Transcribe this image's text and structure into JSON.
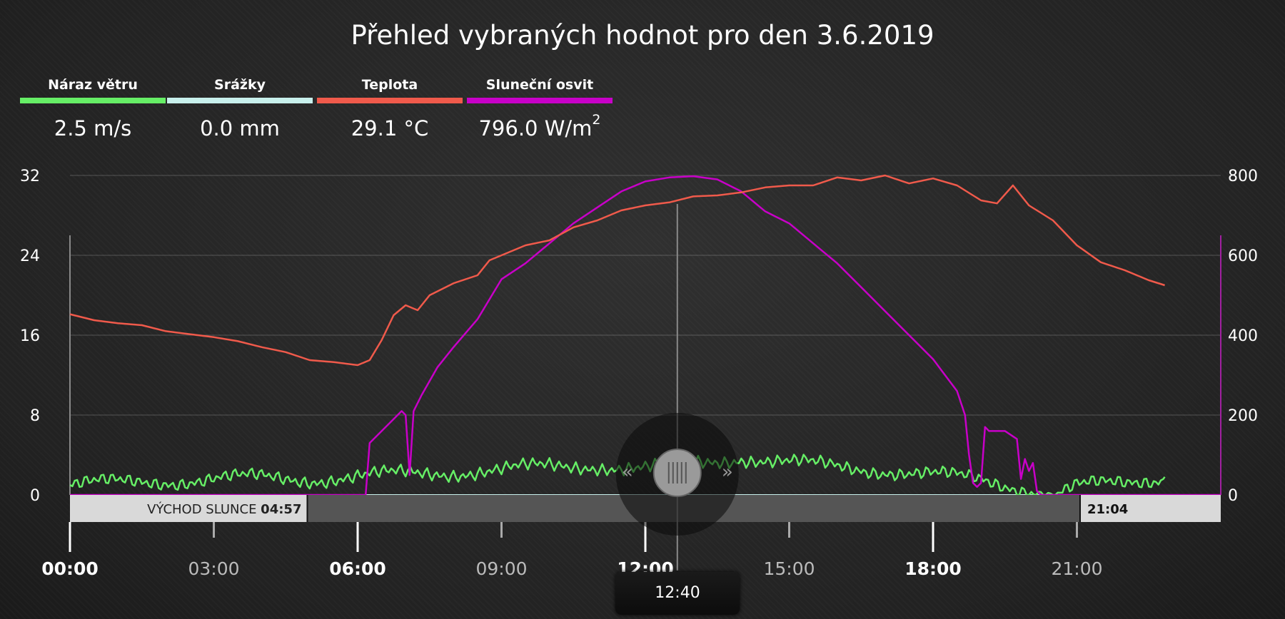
{
  "title": "Přehled vybraných hodnot pro den 3.6.2019",
  "legend": [
    {
      "label": "Náraz větru",
      "value": "2.5 m/s",
      "color": "#66ee66"
    },
    {
      "label": "Srážky",
      "value": "0.0 mm",
      "color": "#c8f0ec"
    },
    {
      "label": "Teplota",
      "value": "29.1 °C",
      "color": "#f05a4b"
    },
    {
      "label": "Sluneční osvit",
      "value": "796.0 W/m",
      "sup": "2",
      "color": "#c800c8"
    }
  ],
  "sunrise": {
    "label": "VÝCHOD SLUNCE",
    "time": "04:57"
  },
  "sunset": {
    "time": "21:04"
  },
  "cursor": {
    "time": "12:40"
  },
  "chart_data": {
    "type": "line",
    "x_unit": "hours",
    "xlim": [
      "00:00",
      "24:00"
    ],
    "x_ticks": [
      "00:00",
      "03:00",
      "06:00",
      "09:00",
      "12:00",
      "15:00",
      "18:00",
      "21:00"
    ],
    "y_left": {
      "ylim": [
        0,
        32
      ],
      "ticks": [
        "0",
        "8",
        "16",
        "24",
        "32"
      ]
    },
    "y_right": {
      "ylim": [
        0,
        800
      ],
      "ticks": [
        "0",
        "200",
        "400",
        "600",
        "800"
      ]
    },
    "grid": true,
    "series": [
      {
        "name": "Teplota",
        "axis": "left",
        "color": "#f05a4b",
        "points": [
          [
            "00:00",
            18.1
          ],
          [
            "00:30",
            17.5
          ],
          [
            "01:00",
            17.2
          ],
          [
            "01:30",
            17.0
          ],
          [
            "02:00",
            16.4
          ],
          [
            "02:30",
            16.1
          ],
          [
            "03:00",
            15.8
          ],
          [
            "03:30",
            15.4
          ],
          [
            "04:00",
            14.8
          ],
          [
            "04:30",
            14.3
          ],
          [
            "05:00",
            13.5
          ],
          [
            "05:30",
            13.3
          ],
          [
            "06:00",
            13.0
          ],
          [
            "06:15",
            13.5
          ],
          [
            "06:30",
            15.5
          ],
          [
            "06:45",
            18.0
          ],
          [
            "07:00",
            19.0
          ],
          [
            "07:15",
            18.5
          ],
          [
            "07:30",
            20.0
          ],
          [
            "08:00",
            21.2
          ],
          [
            "08:30",
            22.0
          ],
          [
            "08:45",
            23.5
          ],
          [
            "09:00",
            24.0
          ],
          [
            "09:30",
            25.0
          ],
          [
            "10:00",
            25.5
          ],
          [
            "10:30",
            26.8
          ],
          [
            "11:00",
            27.5
          ],
          [
            "11:30",
            28.5
          ],
          [
            "12:00",
            29.0
          ],
          [
            "12:30",
            29.3
          ],
          [
            "13:00",
            29.9
          ],
          [
            "13:30",
            30.0
          ],
          [
            "14:00",
            30.3
          ],
          [
            "14:30",
            30.8
          ],
          [
            "15:00",
            31.0
          ],
          [
            "15:30",
            31.0
          ],
          [
            "16:00",
            31.8
          ],
          [
            "16:30",
            31.5
          ],
          [
            "17:00",
            32.0
          ],
          [
            "17:30",
            31.2
          ],
          [
            "18:00",
            31.7
          ],
          [
            "18:30",
            31.0
          ],
          [
            "19:00",
            29.5
          ],
          [
            "19:20",
            29.2
          ],
          [
            "19:40",
            31.0
          ],
          [
            "20:00",
            29.0
          ],
          [
            "20:30",
            27.5
          ],
          [
            "21:00",
            25.0
          ],
          [
            "21:30",
            23.3
          ],
          [
            "22:00",
            22.5
          ],
          [
            "22:30",
            21.5
          ],
          [
            "22:50",
            21.0
          ]
        ]
      },
      {
        "name": "Sluneční osvit",
        "axis": "right",
        "color": "#c800c8",
        "points": [
          [
            "00:00",
            0
          ],
          [
            "06:00",
            0
          ],
          [
            "06:10",
            0
          ],
          [
            "06:15",
            130
          ],
          [
            "06:45",
            190
          ],
          [
            "06:55",
            210
          ],
          [
            "07:00",
            200
          ],
          [
            "07:05",
            50
          ],
          [
            "07:10",
            210
          ],
          [
            "07:20",
            250
          ],
          [
            "07:40",
            320
          ],
          [
            "08:00",
            370
          ],
          [
            "08:30",
            440
          ],
          [
            "09:00",
            540
          ],
          [
            "09:30",
            580
          ],
          [
            "10:00",
            630
          ],
          [
            "10:30",
            680
          ],
          [
            "11:00",
            720
          ],
          [
            "11:30",
            760
          ],
          [
            "12:00",
            785
          ],
          [
            "12:30",
            795
          ],
          [
            "13:00",
            798
          ],
          [
            "13:30",
            790
          ],
          [
            "14:00",
            760
          ],
          [
            "14:30",
            710
          ],
          [
            "15:00",
            680
          ],
          [
            "15:30",
            630
          ],
          [
            "16:00",
            580
          ],
          [
            "16:30",
            520
          ],
          [
            "17:00",
            460
          ],
          [
            "17:30",
            400
          ],
          [
            "18:00",
            340
          ],
          [
            "18:15",
            300
          ],
          [
            "18:30",
            260
          ],
          [
            "18:40",
            200
          ],
          [
            "18:45",
            100
          ],
          [
            "18:50",
            30
          ],
          [
            "18:55",
            20
          ],
          [
            "19:00",
            30
          ],
          [
            "19:05",
            170
          ],
          [
            "19:10",
            160
          ],
          [
            "19:30",
            160
          ],
          [
            "19:45",
            140
          ],
          [
            "19:50",
            40
          ],
          [
            "19:55",
            90
          ],
          [
            "20:00",
            60
          ],
          [
            "20:05",
            80
          ],
          [
            "20:10",
            10
          ],
          [
            "20:15",
            0
          ],
          [
            "24:00",
            0
          ]
        ]
      },
      {
        "name": "Náraz větru",
        "axis": "left",
        "color": "#66ee66",
        "points": [
          [
            "00:00",
            1.0
          ],
          [
            "01:00",
            1.2
          ],
          [
            "02:00",
            1.4
          ],
          [
            "03:00",
            1.6
          ],
          [
            "04:00",
            1.7
          ],
          [
            "05:00",
            1.6
          ],
          [
            "06:00",
            1.8
          ],
          [
            "07:00",
            2.1
          ],
          [
            "08:00",
            2.3
          ],
          [
            "09:00",
            2.5
          ],
          [
            "10:00",
            2.8
          ],
          [
            "11:00",
            3.0
          ],
          [
            "12:00",
            2.6
          ],
          [
            "13:00",
            3.1
          ],
          [
            "14:00",
            3.8
          ],
          [
            "15:00",
            3.2
          ],
          [
            "16:00",
            2.8
          ],
          [
            "17:00",
            2.5
          ],
          [
            "18:00",
            2.0
          ],
          [
            "19:00",
            1.5
          ],
          [
            "20:00",
            0.6
          ],
          [
            "20:30",
            0.0
          ],
          [
            "21:00",
            0.8
          ],
          [
            "22:00",
            1.2
          ],
          [
            "22:50",
            1.8
          ]
        ]
      },
      {
        "name": "Srážky",
        "axis": "left",
        "color": "#c8f0ec",
        "points": [
          [
            "00:00",
            0.0
          ],
          [
            "22:50",
            0.0
          ]
        ]
      }
    ]
  }
}
